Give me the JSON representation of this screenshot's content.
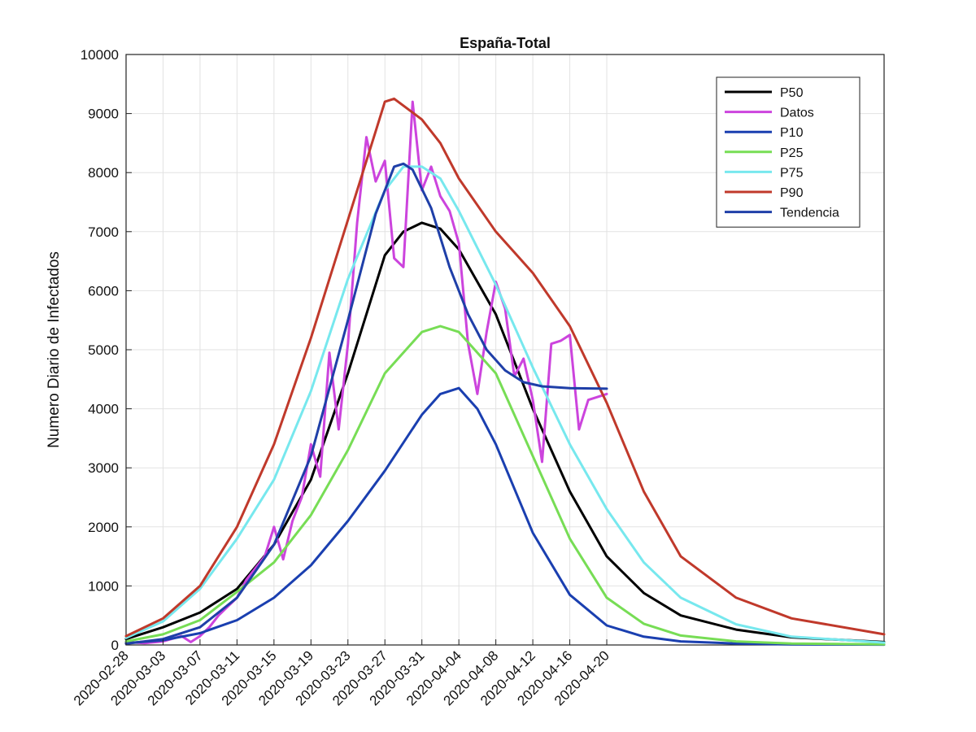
{
  "chart_data": {
    "type": "line",
    "title": "España-Total",
    "xlabel": "",
    "ylabel": "Numero Diario de Infectados",
    "xlim": [
      "2020-02-28",
      "2020-05-20"
    ],
    "ylim": [
      0,
      10000
    ],
    "yticks": [
      0,
      1000,
      2000,
      3000,
      4000,
      5000,
      6000,
      7000,
      8000,
      9000,
      10000
    ],
    "xtick_labels": [
      "2020-02-28",
      "2020-03-03",
      "2020-03-07",
      "2020-03-11",
      "2020-03-15",
      "2020-03-19",
      "2020-03-23",
      "2020-03-27",
      "2020-03-31",
      "2020-04-04",
      "2020-04-08",
      "2020-04-12",
      "2020-04-16",
      "2020-04-20"
    ],
    "grid": true,
    "legend": "top-right",
    "series": [
      {
        "name": "P50",
        "color": "#000000",
        "x": [
          "2020-02-28",
          "2020-03-03",
          "2020-03-07",
          "2020-03-11",
          "2020-03-15",
          "2020-03-19",
          "2020-03-23",
          "2020-03-27",
          "2020-03-29",
          "2020-03-31",
          "2020-04-02",
          "2020-04-04",
          "2020-04-08",
          "2020-04-12",
          "2020-04-16",
          "2020-04-20",
          "2020-04-24",
          "2020-04-28",
          "2020-05-04",
          "2020-05-10",
          "2020-05-20"
        ],
        "y": [
          100,
          300,
          550,
          950,
          1700,
          2800,
          4600,
          6600,
          7000,
          7150,
          7050,
          6700,
          5600,
          4000,
          2600,
          1500,
          880,
          500,
          260,
          130,
          50
        ]
      },
      {
        "name": "Datos",
        "color": "#cc44dd",
        "x": [
          "2020-02-28",
          "2020-03-01",
          "2020-03-03",
          "2020-03-05",
          "2020-03-06",
          "2020-03-07",
          "2020-03-08",
          "2020-03-09",
          "2020-03-10",
          "2020-03-11",
          "2020-03-12",
          "2020-03-13",
          "2020-03-14",
          "2020-03-15",
          "2020-03-16",
          "2020-03-17",
          "2020-03-18",
          "2020-03-19",
          "2020-03-20",
          "2020-03-21",
          "2020-03-22",
          "2020-03-23",
          "2020-03-24",
          "2020-03-25",
          "2020-03-26",
          "2020-03-27",
          "2020-03-28",
          "2020-03-29",
          "2020-03-30",
          "2020-03-31",
          "2020-04-01",
          "2020-04-02",
          "2020-04-03",
          "2020-04-04",
          "2020-04-05",
          "2020-04-06",
          "2020-04-07",
          "2020-04-08",
          "2020-04-09",
          "2020-04-10",
          "2020-04-11",
          "2020-04-12",
          "2020-04-13",
          "2020-04-14",
          "2020-04-15",
          "2020-04-16",
          "2020-04-17",
          "2020-04-18",
          "2020-04-19",
          "2020-04-20"
        ],
        "y": [
          50,
          30,
          60,
          150,
          50,
          150,
          300,
          500,
          650,
          800,
          1100,
          1300,
          1500,
          2000,
          1450,
          2100,
          2500,
          3400,
          2850,
          4950,
          3650,
          5100,
          7150,
          8600,
          7850,
          8200,
          6550,
          6400,
          9200,
          7700,
          8100,
          7600,
          7350,
          6800,
          5100,
          4250,
          5300,
          6150,
          5700,
          4550,
          4850,
          4150,
          3100,
          5100,
          5150,
          5250,
          3650,
          4150,
          4200,
          4250
        ]
      },
      {
        "name": "P10",
        "color": "#1a3fb0",
        "x": [
          "2020-02-28",
          "2020-03-03",
          "2020-03-07",
          "2020-03-11",
          "2020-03-15",
          "2020-03-19",
          "2020-03-23",
          "2020-03-27",
          "2020-03-31",
          "2020-04-02",
          "2020-04-04",
          "2020-04-06",
          "2020-04-08",
          "2020-04-12",
          "2020-04-16",
          "2020-04-20",
          "2020-04-24",
          "2020-04-28",
          "2020-05-04",
          "2020-05-10",
          "2020-05-20"
        ],
        "y": [
          30,
          80,
          200,
          420,
          800,
          1350,
          2100,
          2950,
          3900,
          4250,
          4350,
          4000,
          3400,
          1900,
          850,
          330,
          140,
          60,
          25,
          10,
          5
        ]
      },
      {
        "name": "P25",
        "color": "#77dd55",
        "x": [
          "2020-02-28",
          "2020-03-03",
          "2020-03-07",
          "2020-03-11",
          "2020-03-15",
          "2020-03-19",
          "2020-03-23",
          "2020-03-27",
          "2020-03-31",
          "2020-04-02",
          "2020-04-04",
          "2020-04-08",
          "2020-04-12",
          "2020-04-16",
          "2020-04-20",
          "2020-04-24",
          "2020-04-28",
          "2020-05-04",
          "2020-05-10",
          "2020-05-20"
        ],
        "y": [
          60,
          180,
          420,
          900,
          1400,
          2200,
          3300,
          4600,
          5300,
          5400,
          5300,
          4600,
          3200,
          1800,
          800,
          360,
          160,
          60,
          25,
          10
        ]
      },
      {
        "name": "P75",
        "color": "#77e8ee",
        "x": [
          "2020-02-28",
          "2020-03-03",
          "2020-03-07",
          "2020-03-11",
          "2020-03-15",
          "2020-03-19",
          "2020-03-23",
          "2020-03-27",
          "2020-03-29",
          "2020-03-31",
          "2020-04-02",
          "2020-04-04",
          "2020-04-08",
          "2020-04-12",
          "2020-04-16",
          "2020-04-20",
          "2020-04-24",
          "2020-04-28",
          "2020-05-04",
          "2020-05-10",
          "2020-05-20"
        ],
        "y": [
          120,
          400,
          950,
          1800,
          2800,
          4300,
          6200,
          7700,
          8100,
          8100,
          7900,
          7350,
          6100,
          4700,
          3400,
          2300,
          1400,
          800,
          350,
          140,
          40
        ]
      },
      {
        "name": "P90",
        "color": "#c0392b",
        "x": [
          "2020-02-28",
          "2020-03-03",
          "2020-03-07",
          "2020-03-11",
          "2020-03-15",
          "2020-03-19",
          "2020-03-23",
          "2020-03-26",
          "2020-03-27",
          "2020-03-28",
          "2020-03-31",
          "2020-04-02",
          "2020-04-04",
          "2020-04-08",
          "2020-04-12",
          "2020-04-16",
          "2020-04-20",
          "2020-04-24",
          "2020-04-28",
          "2020-05-04",
          "2020-05-10",
          "2020-05-20"
        ],
        "y": [
          150,
          450,
          1000,
          2000,
          3400,
          5200,
          7200,
          8700,
          9200,
          9250,
          8900,
          8500,
          7900,
          7000,
          6300,
          5400,
          4100,
          2600,
          1500,
          800,
          450,
          180
        ]
      },
      {
        "name": "Tendencia",
        "color": "#1f3fa8",
        "x": [
          "2020-02-28",
          "2020-03-03",
          "2020-03-07",
          "2020-03-11",
          "2020-03-15",
          "2020-03-19",
          "2020-03-23",
          "2020-03-26",
          "2020-03-28",
          "2020-03-29",
          "2020-03-30",
          "2020-04-01",
          "2020-04-03",
          "2020-04-05",
          "2020-04-07",
          "2020-04-09",
          "2020-04-11",
          "2020-04-13",
          "2020-04-16",
          "2020-04-20"
        ],
        "y": [
          20,
          100,
          300,
          800,
          1700,
          3200,
          5500,
          7300,
          8100,
          8150,
          8050,
          7400,
          6400,
          5600,
          5000,
          4650,
          4450,
          4380,
          4350,
          4340
        ]
      }
    ]
  }
}
